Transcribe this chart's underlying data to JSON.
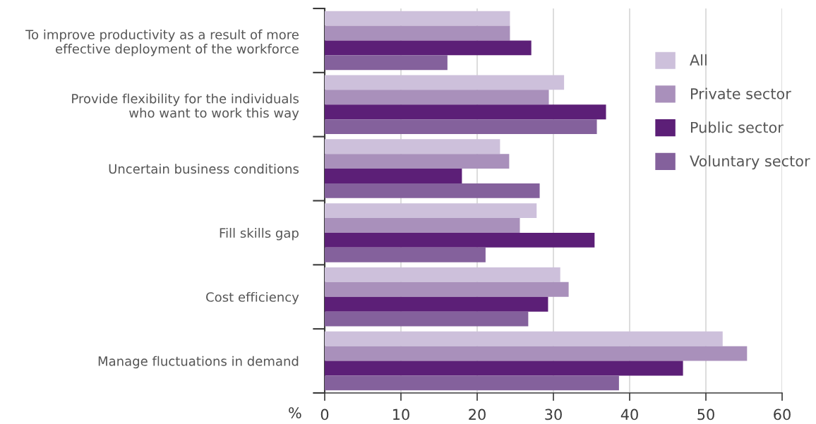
{
  "chart_data": {
    "type": "bar",
    "orientation": "horizontal",
    "xlabel": "%",
    "categories": [
      "To improve productivity as a result of more\neffective deployment of the workforce",
      "Provide flexibility for the individuals\nwho want to work this way",
      "Uncertain business conditions",
      "Fill skills gap",
      "Cost efficiency",
      "Manage fluctuations in demand"
    ],
    "series": [
      {
        "name": "All",
        "color": "#cdc0db",
        "values": [
          24.3,
          31.4,
          23.0,
          27.8,
          30.9,
          52.2
        ]
      },
      {
        "name": "Private sector",
        "color": "#a990bb",
        "values": [
          24.3,
          29.4,
          24.2,
          25.6,
          32.0,
          55.4
        ]
      },
      {
        "name": "Public sector",
        "color": "#5c1f77",
        "values": [
          27.1,
          36.9,
          18.0,
          35.4,
          29.3,
          47.0
        ]
      },
      {
        "name": "Voluntary sector",
        "color": "#84619c",
        "values": [
          16.1,
          35.7,
          28.2,
          21.1,
          26.7,
          38.6
        ]
      }
    ],
    "xlim": [
      0,
      60
    ],
    "xticks": [
      0,
      10,
      20,
      30,
      40,
      50,
      60
    ],
    "grid": "x",
    "legend": "top right"
  }
}
